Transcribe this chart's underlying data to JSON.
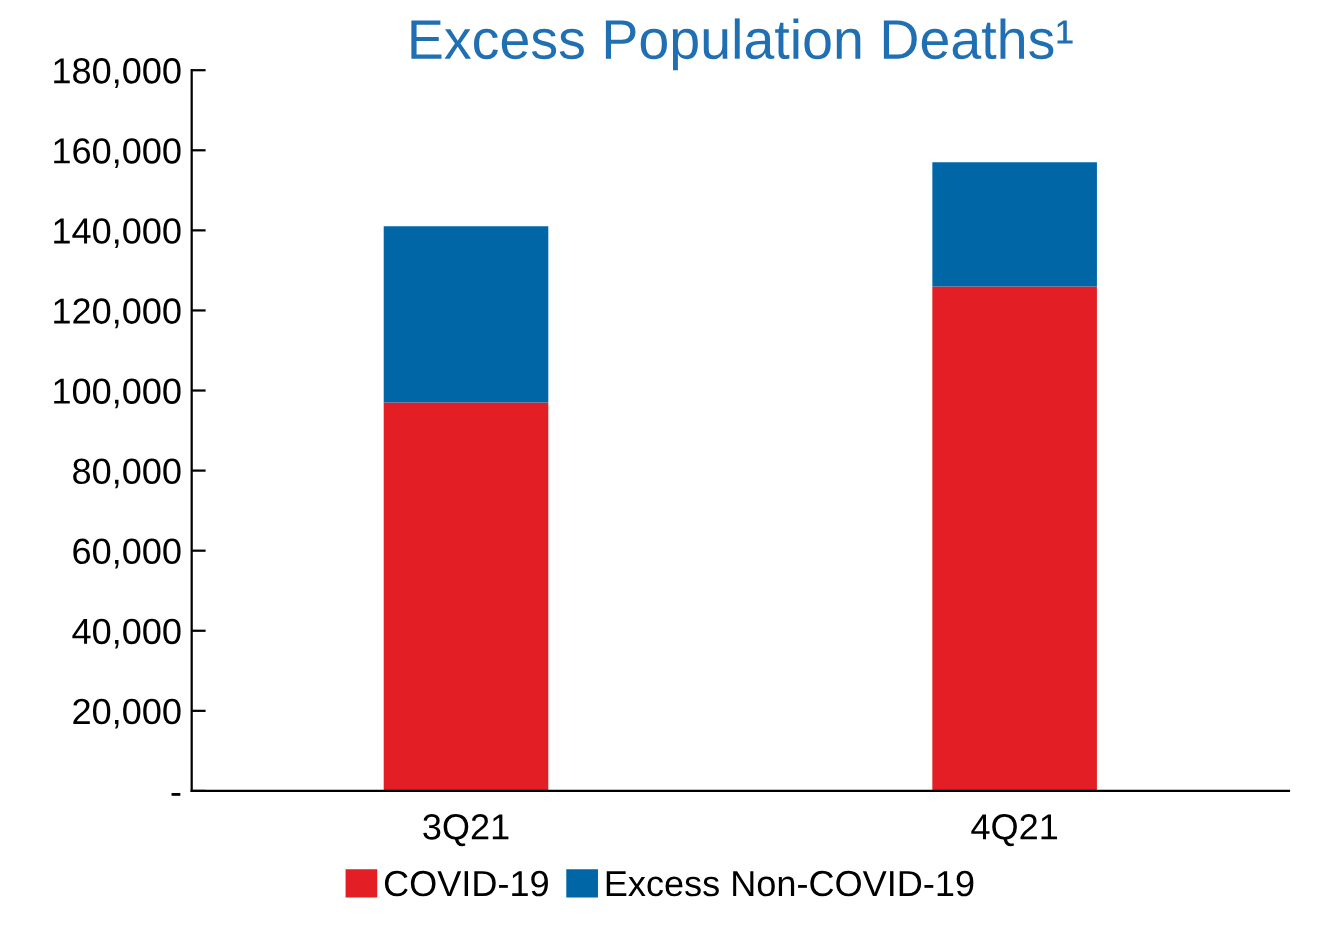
{
  "chart_data": {
    "type": "bar",
    "title": "Excess Population Deaths¹",
    "categories": [
      "3Q21",
      "4Q21"
    ],
    "stacked": true,
    "series": [
      {
        "name": "COVID-19",
        "color": "#e31e24",
        "values": [
          97000,
          126000
        ]
      },
      {
        "name": "Excess Non-COVID-19",
        "color": "#0066a6",
        "values": [
          44000,
          31000
        ]
      }
    ],
    "ylim": [
      0,
      180000
    ],
    "yticks": [
      {
        "value": 0,
        "label": "-"
      },
      {
        "value": 20000,
        "label": "20,000"
      },
      {
        "value": 40000,
        "label": "40,000"
      },
      {
        "value": 60000,
        "label": "60,000"
      },
      {
        "value": 80000,
        "label": "80,000"
      },
      {
        "value": 100000,
        "label": "100,000"
      },
      {
        "value": 120000,
        "label": "120,000"
      },
      {
        "value": 140000,
        "label": "140,000"
      },
      {
        "value": 160000,
        "label": "160,000"
      },
      {
        "value": 180000,
        "label": "180,000"
      }
    ],
    "grid": false,
    "legend": "bottom"
  }
}
